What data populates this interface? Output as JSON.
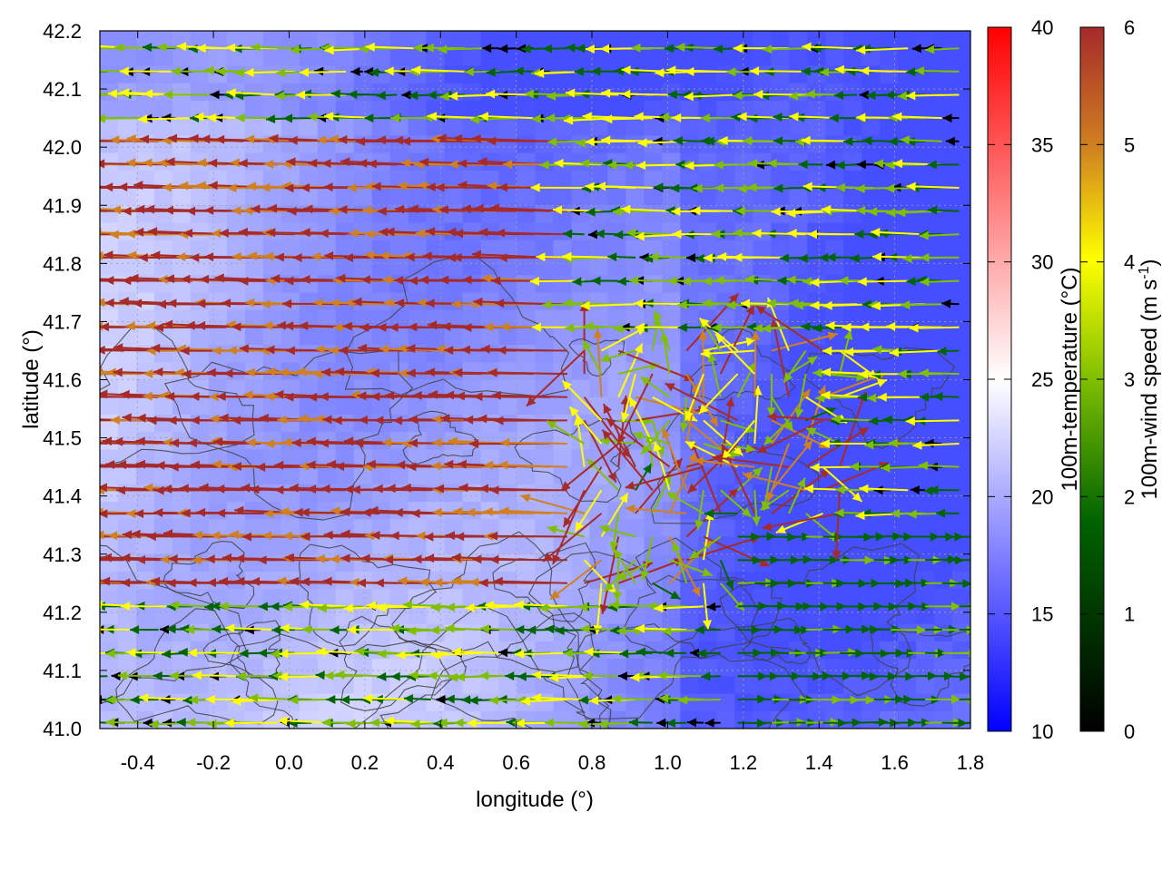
{
  "chart_data": {
    "type": "heatmap",
    "title": "",
    "xlabel": "longitude (°)",
    "ylabel": "latitude (°)",
    "xlim": [
      -0.5,
      1.8
    ],
    "ylim": [
      41.0,
      42.2
    ],
    "x_ticks": [
      "-0.4",
      "-0.2",
      "0.0",
      "0.2",
      "0.4",
      "0.6",
      "0.8",
      "1.0",
      "1.2",
      "1.4",
      "1.6",
      "1.8"
    ],
    "y_ticks": [
      "41.0",
      "41.1",
      "41.2",
      "41.3",
      "41.4",
      "41.5",
      "41.6",
      "41.7",
      "41.8",
      "41.9",
      "42.0",
      "42.1",
      "42.2"
    ],
    "grid": true,
    "layers": {
      "field": "100m-temperature",
      "vectors": "100m-wind",
      "contours": "terrain elevation"
    },
    "temperature_colorbar": {
      "label": "100m-temperature (°C)",
      "range": [
        10,
        40
      ],
      "ticks": [
        "10",
        "15",
        "20",
        "25",
        "30",
        "35",
        "40"
      ],
      "colors": [
        "#0000ff",
        "#ffffff",
        "#ff0000"
      ]
    },
    "wind_colorbar": {
      "label_main": "100m-wind speed (m s",
      "label_sup": "-1",
      "label_end": ")",
      "range": [
        0,
        6
      ],
      "ticks": [
        "0",
        "1",
        "2",
        "3",
        "4",
        "5",
        "6"
      ],
      "colors": [
        "#000000",
        "#006400",
        "#7fbf00",
        "#ffff00",
        "#d08020",
        "#a52a2a"
      ]
    },
    "contour_color": "#404040"
  }
}
